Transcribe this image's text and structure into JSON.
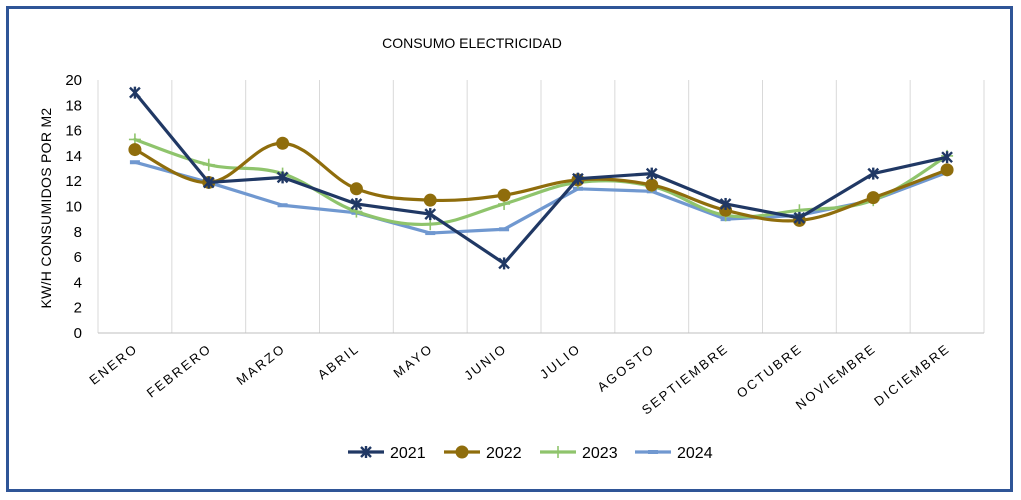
{
  "chart_data": {
    "type": "line",
    "title": "CONSUMO ELECTRICIDAD",
    "xlabel": "",
    "ylabel": "KW/H CONSUMIDOS POR M2",
    "ylim": [
      0,
      20
    ],
    "yticks": [
      0,
      2,
      4,
      6,
      8,
      10,
      12,
      14,
      16,
      18,
      20
    ],
    "grid": "vertical",
    "legend": "bottom",
    "categories": [
      "ENERO",
      "FEBRERO",
      "MARZO",
      "ABRIL",
      "MAYO",
      "JUNIO",
      "JULIO",
      "AGOSTO",
      "SEPTIEMBRE",
      "OCTUBRE",
      "NOVIEMBRE",
      "DICIEMBRE"
    ],
    "series": [
      {
        "name": "2021",
        "color": "#203864",
        "marker": "star",
        "smooth": false,
        "values": [
          19.0,
          11.9,
          12.3,
          10.2,
          9.4,
          5.5,
          12.2,
          12.6,
          10.2,
          9.1,
          12.6,
          13.9
        ]
      },
      {
        "name": "2022",
        "color": "#8f6d0c",
        "marker": "circle",
        "smooth": true,
        "values": [
          14.5,
          11.9,
          15.0,
          11.4,
          10.5,
          10.9,
          12.1,
          11.7,
          9.7,
          8.9,
          10.7,
          12.9
        ]
      },
      {
        "name": "2023",
        "color": "#8fc46c",
        "marker": "plus",
        "smooth": true,
        "values": [
          15.3,
          13.3,
          12.6,
          9.6,
          8.6,
          10.2,
          11.9,
          11.6,
          9.3,
          9.7,
          10.5,
          14.0
        ]
      },
      {
        "name": "2024",
        "color": "#7098d0",
        "marker": "dash",
        "smooth": false,
        "values": [
          13.5,
          11.9,
          10.1,
          9.5,
          7.9,
          8.2,
          11.4,
          11.2,
          9.0,
          9.3,
          10.5,
          12.7
        ]
      }
    ]
  }
}
